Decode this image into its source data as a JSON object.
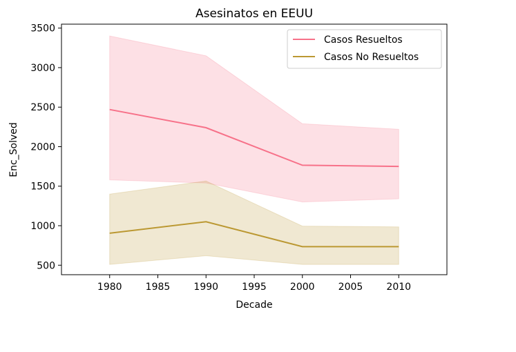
{
  "chart_data": {
    "type": "line",
    "title": "Asesinatos en EEUU",
    "xlabel": "Decade",
    "ylabel": "Enc_Solved",
    "x": [
      1980,
      1990,
      2000,
      2010
    ],
    "xlim": [
      1975,
      2015
    ],
    "ylim": [
      380,
      3550
    ],
    "xticks": [
      1980,
      1985,
      1990,
      1995,
      2000,
      2005,
      2010
    ],
    "yticks": [
      500,
      1000,
      1500,
      2000,
      2500,
      3000,
      3500
    ],
    "legend_position": "upper-right",
    "grid": false,
    "series": [
      {
        "name": "Casos Resueltos",
        "color": "#f77189",
        "values": [
          2470,
          2240,
          1765,
          1750
        ],
        "band_low": [
          1580,
          1540,
          1300,
          1340
        ],
        "band_high": [
          3400,
          3150,
          2290,
          2220
        ]
      },
      {
        "name": "Casos No Resueltos",
        "color": "#bb9832",
        "values": [
          905,
          1050,
          735,
          735
        ],
        "band_low": [
          510,
          620,
          510,
          510
        ],
        "band_high": [
          1400,
          1565,
          995,
          985
        ]
      }
    ]
  }
}
